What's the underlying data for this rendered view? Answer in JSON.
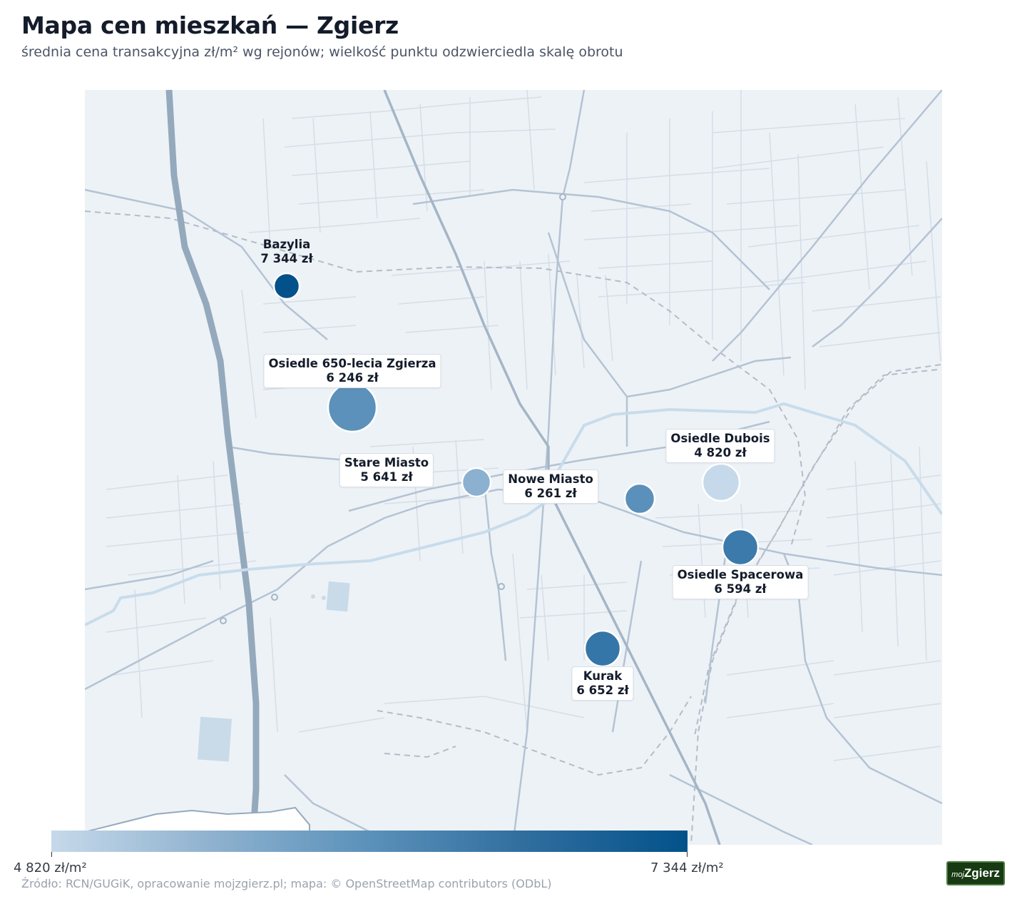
{
  "title": "Mapa cen mieszkań — Zgierz",
  "subtitle": "średnia cena transakcyjna zł/m² wg rejonów; wielkość punktu odzwierciedla skalę obrotu",
  "legend": {
    "min_label": "4 820 zł/m²",
    "max_label": "7 344 zł/m²",
    "color_low": "#c6d9ea",
    "color_high": "#02528a"
  },
  "source": "Źródło: RCN/GUGiK, opracowanie mojzgierz.pl; mapa: © OpenStreetMap contributors (ODbL)",
  "logo": {
    "small": "moj",
    "big": "Zgierz"
  },
  "districts": [
    {
      "name": "Bazylia",
      "price_label": "7 344 zł",
      "price": 7344
    },
    {
      "name": "Osiedle 650-lecia Zgierza",
      "price_label": "6 246 zł",
      "price": 6246
    },
    {
      "name": "Stare Miasto",
      "price_label": "5 641 zł",
      "price": 5641
    },
    {
      "name": "Nowe Miasto",
      "price_label": "6 261 zł",
      "price": 6261
    },
    {
      "name": "Osiedle Dubois",
      "price_label": "4 820 zł",
      "price": 4820
    },
    {
      "name": "Osiedle Spacerowa",
      "price_label": "6 594 zł",
      "price": 6594
    },
    {
      "name": "Kurak",
      "price_label": "6 652 zł",
      "price": 6652
    }
  ]
}
